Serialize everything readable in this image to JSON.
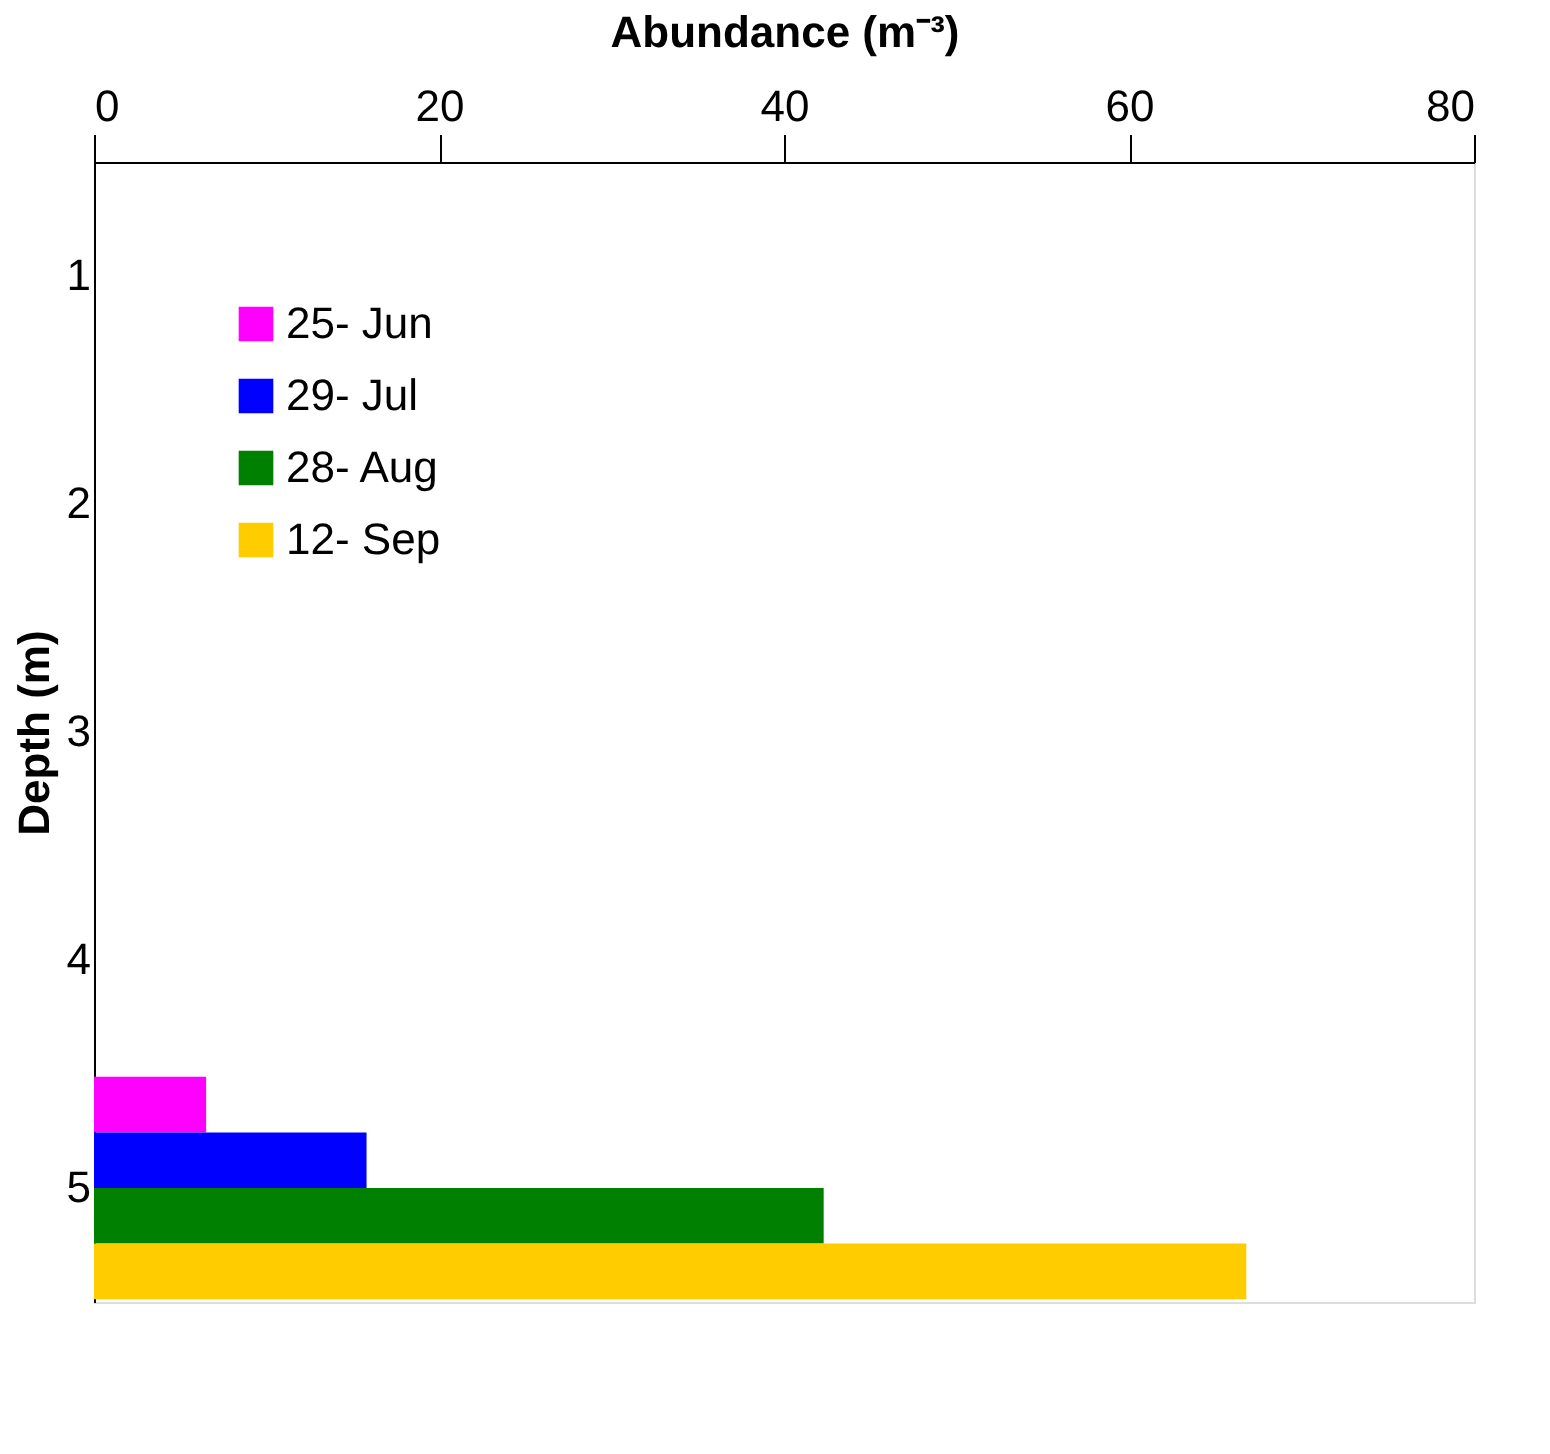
{
  "chart_data": {
    "type": "bar",
    "orientation": "horizontal",
    "xlabel": "Abundance (m⁻³)",
    "ylabel": "Depth (m)",
    "categories": [
      "1",
      "2",
      "3",
      "4",
      "5"
    ],
    "series": [
      {
        "name": "25- Jun",
        "color": "#ff00ff",
        "values": [
          null,
          null,
          null,
          null,
          6.5
        ]
      },
      {
        "name": "29- Jul",
        "color": "#0000ff",
        "values": [
          null,
          null,
          null,
          null,
          15.8
        ]
      },
      {
        "name": "28- Aug",
        "color": "#008000",
        "values": [
          null,
          null,
          null,
          null,
          42.3
        ]
      },
      {
        "name": "12- Sep",
        "color": "#ffcc00",
        "values": [
          null,
          null,
          null,
          null,
          66.8
        ]
      }
    ],
    "xlim": [
      0,
      80
    ],
    "xticks": [
      0,
      20,
      40,
      60,
      80
    ],
    "grid": false,
    "legend": "top left"
  }
}
